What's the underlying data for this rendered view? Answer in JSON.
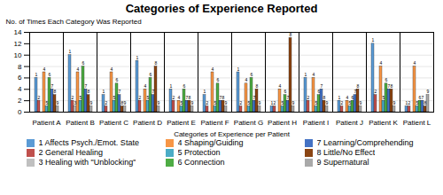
{
  "chart_data": {
    "type": "bar",
    "title": "Categories of Experience Reported",
    "xlabel": "Categories of Experience per Patient",
    "ylabel": "No. of Times Each Category Was Reported",
    "categories": [
      "Patient A",
      "Patient B",
      "Patient C",
      "Patient D",
      "Patient E",
      "Patient F",
      "Patient G",
      "Patient H",
      "Patient I",
      "Patient J",
      "Patient K",
      "Patient L"
    ],
    "series": [
      {
        "name": "1 Affects Psych./Emot. State",
        "label": "1",
        "color": "#5B9BD5",
        "values": [
          6,
          10,
          3,
          9,
          4,
          3,
          7,
          1,
          6,
          2,
          12,
          1
        ]
      },
      {
        "name": "2 General Healing",
        "label": "2",
        "color": "#C0504D",
        "values": [
          2,
          2,
          1,
          2,
          2,
          1,
          1,
          1,
          2,
          1,
          3,
          1
        ]
      },
      {
        "name": "3 Healing with \"Unblocking\"",
        "label": "3",
        "color": "#C0C0C0",
        "values": [
          0,
          1,
          0,
          0,
          0,
          0,
          0,
          0,
          0,
          0,
          0,
          0
        ]
      },
      {
        "name": "4 Shaping/Guiding",
        "label": "4",
        "color": "#F79646",
        "values": [
          7,
          7,
          7,
          4,
          2,
          7,
          5,
          4,
          6,
          2,
          8,
          8
        ]
      },
      {
        "name": "5 Protection",
        "label": "5",
        "color": "#4BACC6",
        "values": [
          1,
          2,
          2,
          2,
          1,
          1,
          1,
          1,
          1,
          1,
          2,
          1
        ]
      },
      {
        "name": "6 Connection",
        "label": "6",
        "color": "#4EAC44",
        "values": [
          6,
          8,
          5,
          6,
          4,
          5,
          6,
          3,
          3,
          2,
          5,
          2
        ]
      },
      {
        "name": "7 Learning/Comprehending",
        "label": "7",
        "color": "#4472C4",
        "values": [
          4,
          4,
          3,
          3,
          2,
          2,
          2,
          2,
          4,
          3,
          4,
          2
        ]
      },
      {
        "name": "8 Little/No Effect",
        "label": "8",
        "color": "#8B4513",
        "values": [
          3,
          3,
          1,
          8,
          2,
          2,
          4,
          13,
          2,
          4,
          4,
          1
        ]
      },
      {
        "name": "9 Supernatural",
        "label": "9",
        "color": "#A9A9A9",
        "values": [
          1,
          1,
          1,
          1,
          1,
          1,
          1,
          1,
          1,
          1,
          1,
          3
        ]
      }
    ],
    "ylim": [
      0,
      14
    ],
    "yticks": [
      0,
      2,
      4,
      6,
      8,
      10,
      12,
      14
    ],
    "grid": true,
    "legend": "bottom"
  }
}
